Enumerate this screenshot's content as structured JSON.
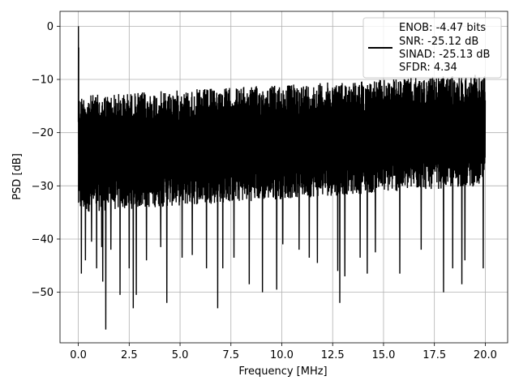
{
  "chart_data": {
    "type": "line",
    "title": "",
    "xlabel": "Frequency [MHz]",
    "ylabel": "PSD [dB]",
    "xlim": [
      -0.9,
      21.1
    ],
    "ylim": [
      -59.5,
      2.8
    ],
    "x_ticks": [
      0.0,
      2.5,
      5.0,
      7.5,
      10.0,
      12.5,
      15.0,
      17.5,
      20.0
    ],
    "x_tick_labels": [
      "0.0",
      "2.5",
      "5.0",
      "7.5",
      "10.0",
      "12.5",
      "15.0",
      "17.5",
      "20.0"
    ],
    "y_ticks": [
      0,
      -10,
      -20,
      -30,
      -40,
      -50
    ],
    "y_tick_labels": [
      "0",
      "−10",
      "−20",
      "−30",
      "−40",
      "−50"
    ],
    "grid": true,
    "legend": {
      "position": "top-right",
      "lines": [
        "ENOB: -4.47 bits",
        "SNR: -25.12 dB",
        "SINAD: -25.13 dB",
        "SFDR: 4.34"
      ]
    },
    "series": [
      {
        "color": "#000000",
        "noise_band": {
          "x_range": [
            0.0,
            20.0
          ],
          "upper": [
            -13,
            -9
          ],
          "lower": [
            -35,
            -30
          ],
          "mean": -21
        },
        "peak": {
          "x": 0.0,
          "y": 0.0
        },
        "deep_dips": [
          {
            "x": 0.15,
            "y": -46.5
          },
          {
            "x": 0.35,
            "y": -44.0
          },
          {
            "x": 0.65,
            "y": -40.5
          },
          {
            "x": 0.9,
            "y": -45.5
          },
          {
            "x": 1.15,
            "y": -41.5
          },
          {
            "x": 1.2,
            "y": -48.0
          },
          {
            "x": 1.35,
            "y": -57.0
          },
          {
            "x": 1.6,
            "y": -42.0
          },
          {
            "x": 2.05,
            "y": -50.5
          },
          {
            "x": 2.5,
            "y": -45.5
          },
          {
            "x": 2.7,
            "y": -53.0
          },
          {
            "x": 2.85,
            "y": -50.5
          },
          {
            "x": 3.35,
            "y": -44.0
          },
          {
            "x": 4.05,
            "y": -41.5
          },
          {
            "x": 4.35,
            "y": -52.0
          },
          {
            "x": 5.1,
            "y": -43.5
          },
          {
            "x": 5.6,
            "y": -43.0
          },
          {
            "x": 6.3,
            "y": -45.5
          },
          {
            "x": 6.85,
            "y": -53.0
          },
          {
            "x": 7.1,
            "y": -45.5
          },
          {
            "x": 7.65,
            "y": -43.5
          },
          {
            "x": 8.4,
            "y": -48.5
          },
          {
            "x": 9.05,
            "y": -50.0
          },
          {
            "x": 9.75,
            "y": -49.5
          },
          {
            "x": 10.05,
            "y": -41.0
          },
          {
            "x": 10.85,
            "y": -42.0
          },
          {
            "x": 11.35,
            "y": -43.5
          },
          {
            "x": 11.75,
            "y": -44.5
          },
          {
            "x": 12.75,
            "y": -46.0
          },
          {
            "x": 12.85,
            "y": -52.0
          },
          {
            "x": 13.1,
            "y": -47.0
          },
          {
            "x": 13.85,
            "y": -43.5
          },
          {
            "x": 14.2,
            "y": -46.5
          },
          {
            "x": 14.6,
            "y": -42.5
          },
          {
            "x": 15.8,
            "y": -46.5
          },
          {
            "x": 16.85,
            "y": -42.0
          },
          {
            "x": 17.95,
            "y": -50.0
          },
          {
            "x": 18.4,
            "y": -45.5
          },
          {
            "x": 18.85,
            "y": -48.5
          },
          {
            "x": 19.0,
            "y": -44.0
          },
          {
            "x": 19.9,
            "y": -45.5
          }
        ]
      }
    ]
  }
}
